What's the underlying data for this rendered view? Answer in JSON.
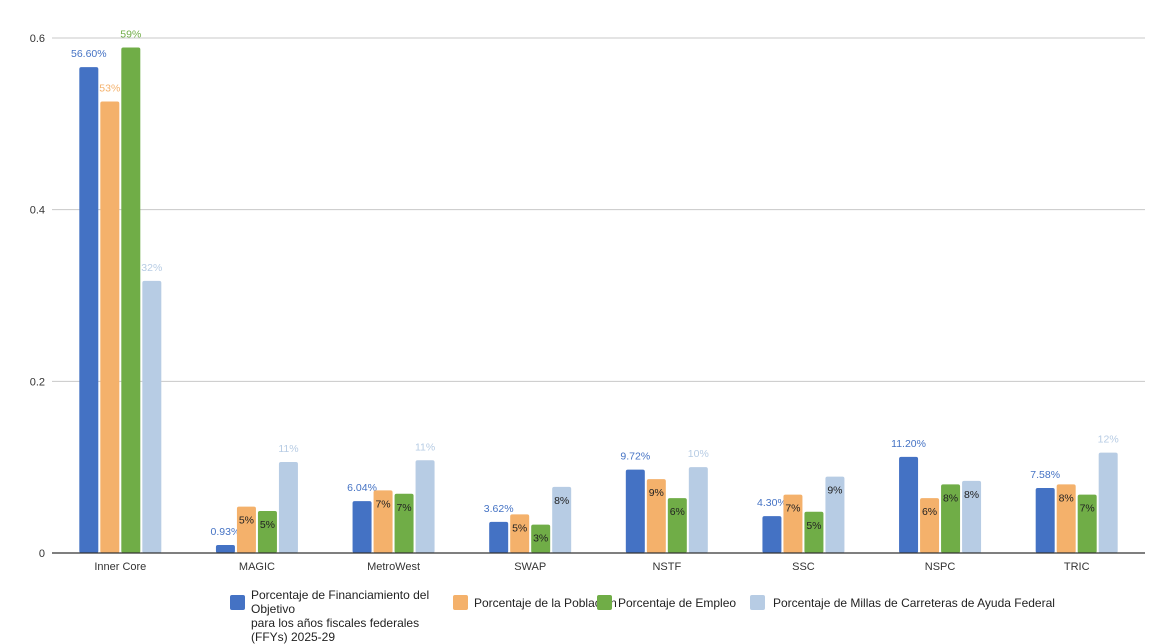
{
  "chart_data": {
    "type": "bar",
    "title": "",
    "xlabel": "",
    "ylabel": "",
    "ylim": [
      0,
      0.6
    ],
    "yticks": [
      "0",
      "0.2",
      "0.4",
      "0.6"
    ],
    "grid": true,
    "legend_position": "bottom",
    "categories": [
      "Inner Core",
      "MAGIC",
      "MetroWest",
      "SWAP",
      "NSTF",
      "SSC",
      "NSPC",
      "TRIC"
    ],
    "series": [
      {
        "name": "Porcentaje de Financiamiento del Objetivo para los años fiscales federales (FFYs) 2025-29",
        "name_lines": [
          "Porcentaje de Financiamiento del Objetivo",
          "para los años fiscales federales",
          "(FFYs) 2025-29"
        ],
        "color": "#4472c4",
        "values": [
          0.566,
          0.0093,
          0.0604,
          0.0362,
          0.0972,
          0.043,
          0.112,
          0.0758
        ],
        "labels": [
          "56.60%",
          "0.93%",
          "6.04%",
          "3.62%",
          "9.72%",
          "4.30%",
          "11.20%",
          "7.58%"
        ]
      },
      {
        "name": "Porcentaje de la Población",
        "color": "#f4b16b",
        "values": [
          0.526,
          0.054,
          0.073,
          0.045,
          0.086,
          0.068,
          0.064,
          0.08
        ],
        "labels": [
          "53%",
          "5%",
          "7%",
          "5%",
          "9%",
          "7%",
          "6%",
          "8%"
        ]
      },
      {
        "name": "Porcentaje de Empleo",
        "color": "#70ad47",
        "values": [
          0.589,
          0.049,
          0.069,
          0.033,
          0.064,
          0.048,
          0.08,
          0.068
        ],
        "labels": [
          "59%",
          "5%",
          "7%",
          "3%",
          "6%",
          "5%",
          "8%",
          "7%"
        ]
      },
      {
        "name": "Porcentaje de Millas de Carreteras de Ayuda Federal",
        "color": "#b7cce4",
        "values": [
          0.317,
          0.106,
          0.108,
          0.077,
          0.1,
          0.089,
          0.084,
          0.117
        ],
        "labels": [
          "32%",
          "11%",
          "11%",
          "8%",
          "10%",
          "9%",
          "8%",
          "12%"
        ]
      }
    ]
  }
}
